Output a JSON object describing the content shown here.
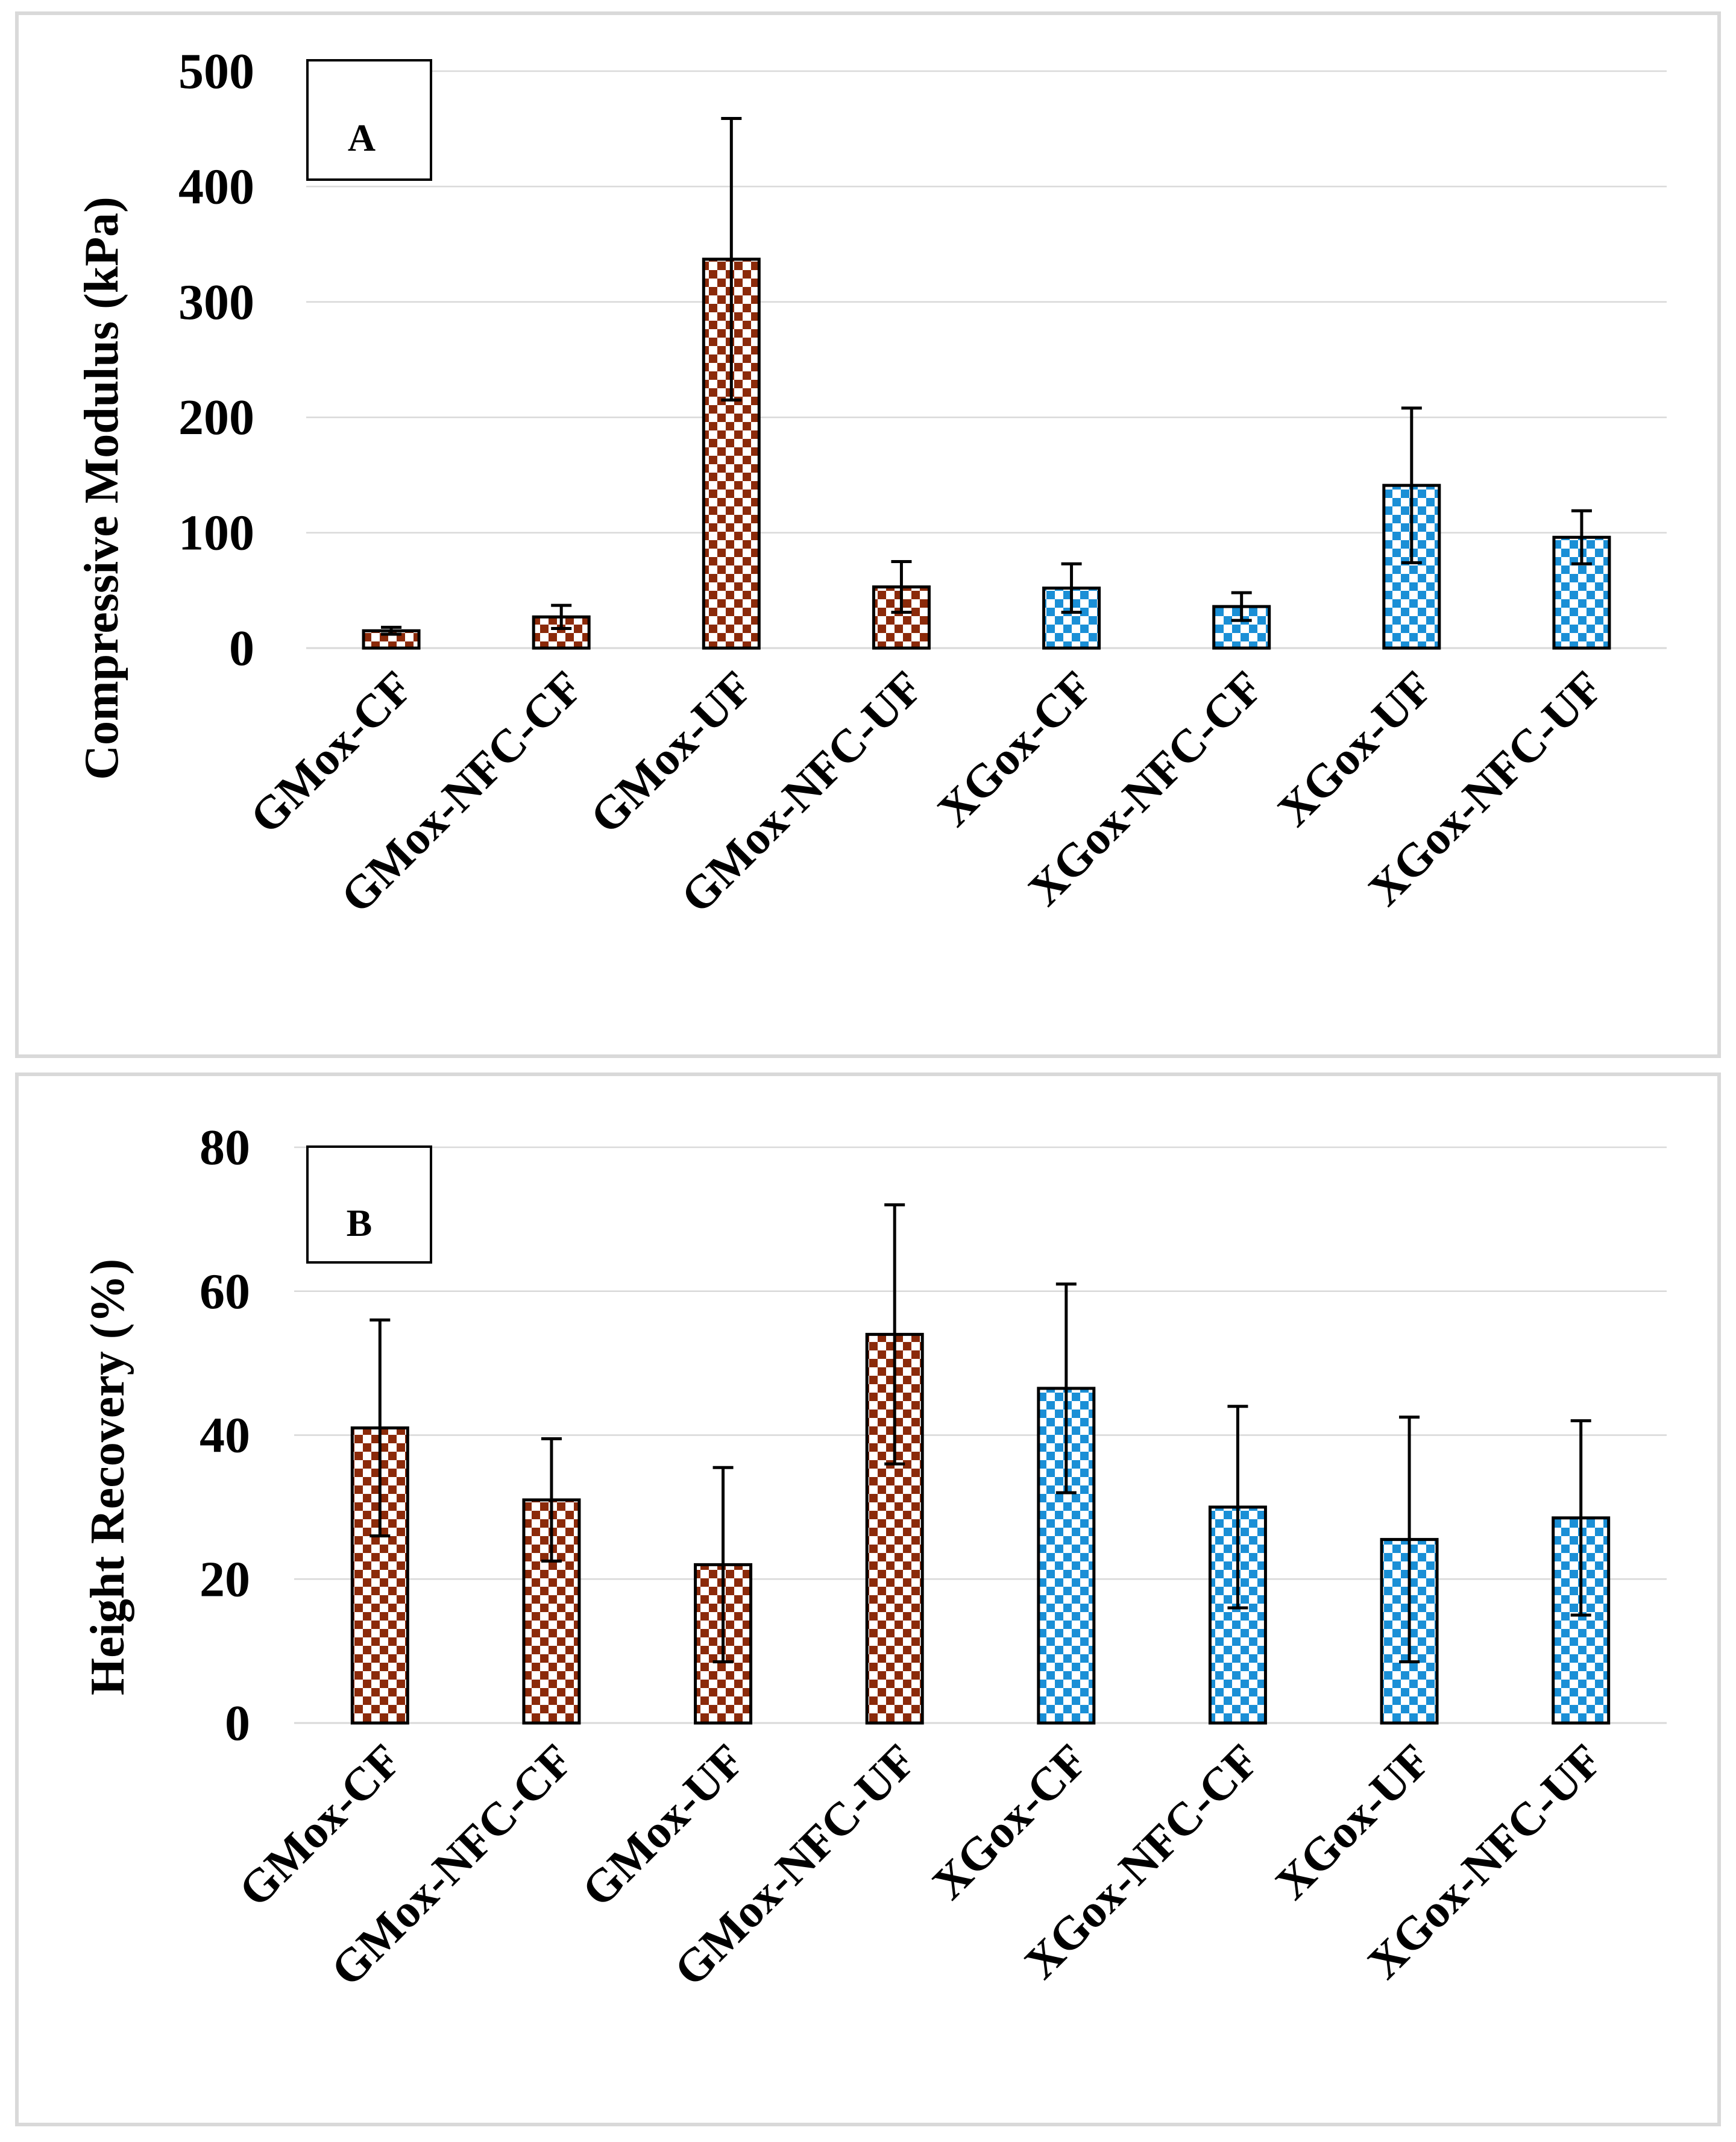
{
  "chart_data": [
    {
      "type": "bar",
      "panel_label": "A",
      "title": "",
      "xlabel": "",
      "ylabel": "Compressive Modulus (kPa)",
      "ylim": [
        0,
        500
      ],
      "yticks": [
        0,
        100,
        200,
        300,
        400,
        500
      ],
      "grid": true,
      "categories": [
        "GMox-CF",
        "GMox-NFC-CF",
        "GMox-UF",
        "GMox-NFC-UF",
        "XGox-CF",
        "XGox-NFC-CF",
        "XGox-UF",
        "XGox-NFC-UF"
      ],
      "values": [
        15,
        27,
        337,
        53,
        52,
        36,
        141,
        96
      ],
      "errors": [
        3,
        10,
        122,
        22,
        21,
        12,
        67,
        23
      ],
      "groups": [
        "GMox",
        "GMox",
        "GMox",
        "GMox",
        "XGox",
        "XGox",
        "XGox",
        "XGox"
      ]
    },
    {
      "type": "bar",
      "panel_label": "B",
      "title": "",
      "xlabel": "",
      "ylabel": "Height Recovery (%)",
      "ylim": [
        0,
        80
      ],
      "yticks": [
        0,
        20,
        40,
        60,
        80
      ],
      "grid": true,
      "categories": [
        "GMox-CF",
        "GMox-NFC-CF",
        "GMox-UF",
        "GMox-NFC-UF",
        "XGox-CF",
        "XGox-NFC-CF",
        "XGox-UF",
        "XGox-NFC-UF"
      ],
      "values": [
        41,
        31,
        22,
        54,
        46.5,
        30,
        25.5,
        28.5
      ],
      "errors": [
        15,
        8.5,
        13.5,
        18,
        14.5,
        14,
        17,
        13.5
      ],
      "groups": [
        "GMox",
        "GMox",
        "GMox",
        "GMox",
        "XGox",
        "XGox",
        "XGox",
        "XGox"
      ]
    }
  ],
  "colors": {
    "GMox": "#8b2a0a",
    "XGox": "#1a8fd6",
    "pattern_background": "#ffffff"
  }
}
